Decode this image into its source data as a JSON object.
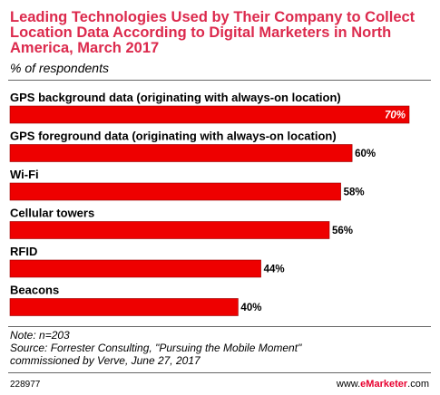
{
  "chart_data": {
    "type": "bar",
    "orientation": "horizontal",
    "title": "Leading Technologies Used by Their Company to Collect Location Data According to Digital Marketers in North America, March 2017",
    "subtitle": "% of respondents",
    "categories": [
      "GPS background data (originating with always-on location)",
      "GPS foreground data (originating with always-on location)",
      "Wi-Fi",
      "Cellular towers",
      "RFID",
      "Beacons"
    ],
    "values": [
      70,
      60,
      58,
      56,
      44,
      40
    ],
    "value_labels": [
      "70%",
      "60%",
      "58%",
      "56%",
      "44%",
      "40%"
    ],
    "xlim": [
      0,
      70
    ],
    "bar_color": "#ee0000",
    "grid": false,
    "legend": "none"
  },
  "notes": {
    "note": "Note: n=203",
    "source_line1": "Source: Forrester Consulting, \"Pursuing the Mobile Moment\"",
    "source_line2": "commissioned by Verve, June 27, 2017"
  },
  "footer": {
    "chart_id": "228977",
    "brand_prefix": "www.",
    "brand_name": "eMarketer",
    "brand_suffix": ".com"
  }
}
